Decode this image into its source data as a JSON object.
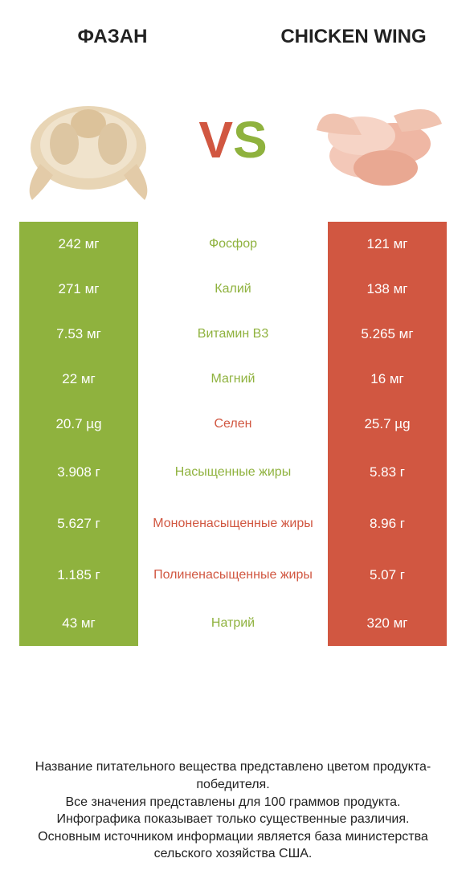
{
  "colors": {
    "green": "#8fb23e",
    "red": "#d15741",
    "white": "#ffffff",
    "text": "#222222"
  },
  "header": {
    "left_title": "ФАЗАН",
    "right_title": "CHICKEN WING",
    "vs_v": "V",
    "vs_s": "S"
  },
  "hero": {
    "left_alt": "pheasant-whole-bird",
    "right_alt": "chicken-wings-pile"
  },
  "rows": [
    {
      "left": "242 мг",
      "label": "Фосфор",
      "right": "121 мг",
      "winner": "left",
      "tall": false
    },
    {
      "left": "271 мг",
      "label": "Калий",
      "right": "138 мг",
      "winner": "left",
      "tall": false
    },
    {
      "left": "7.53 мг",
      "label": "Витамин B3",
      "right": "5.265 мг",
      "winner": "left",
      "tall": false
    },
    {
      "left": "22 мг",
      "label": "Магний",
      "right": "16 мг",
      "winner": "left",
      "tall": false
    },
    {
      "left": "20.7 µg",
      "label": "Селен",
      "right": "25.7 µg",
      "winner": "right",
      "tall": false
    },
    {
      "left": "3.908 г",
      "label": "Насыщенные жиры",
      "right": "5.83 г",
      "winner": "left",
      "tall": true
    },
    {
      "left": "5.627 г",
      "label": "Мононенасыщенные жиры",
      "right": "8.96 г",
      "winner": "right",
      "tall": true
    },
    {
      "left": "1.185 г",
      "label": "Полиненасыщенные жиры",
      "right": "5.07 г",
      "winner": "right",
      "tall": true
    },
    {
      "left": "43 мг",
      "label": "Натрий",
      "right": "320 мг",
      "winner": "left",
      "tall": false
    }
  ],
  "footer": {
    "line1": "Название питательного вещества представлено цветом продукта-победителя.",
    "line2": "Все значения представлены для 100 граммов продукта.",
    "line3": "Инфографика показывает только существенные различия.",
    "line4": "Основным источником информации является база министерства сельского хозяйства США."
  }
}
